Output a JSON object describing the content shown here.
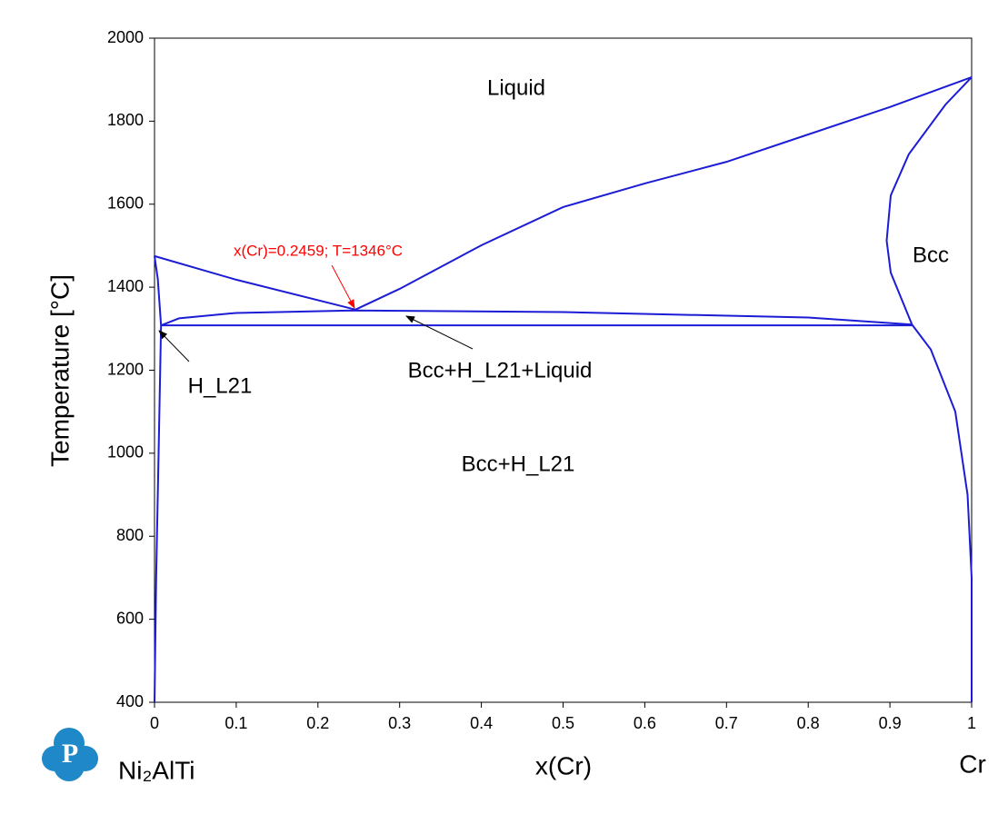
{
  "chart_data": {
    "type": "line",
    "xlabel": "x(Cr)",
    "ylabel": "Temperature [°C]",
    "element_label": "Cr",
    "system_label": "Ni₂AlTi",
    "xlim": [
      0,
      1
    ],
    "ylim": [
      400,
      2000
    ],
    "xticks": [
      0,
      0.1,
      0.2,
      0.3,
      0.4,
      0.5,
      0.6,
      0.7,
      0.8,
      0.9,
      1
    ],
    "yticks": [
      400,
      600,
      800,
      1000,
      1200,
      1400,
      1600,
      1800,
      2000
    ],
    "series": [
      {
        "color": "#1c1cd6",
        "x": [
          0,
          0.1,
          0.2459
        ],
        "values": [
          1475,
          1418,
          1346
        ]
      },
      {
        "color": "#1c1cd6",
        "x": [
          0.2459,
          0.3,
          0.4,
          0.5,
          0.6,
          0.7,
          0.8,
          0.9,
          1
        ],
        "values": [
          1346,
          1396,
          1501,
          1593,
          1650,
          1702,
          1768,
          1834,
          1906
        ]
      },
      {
        "color": "#1c1cd6",
        "x": [
          1,
          0.968,
          0.923,
          0.901,
          0.896,
          0.901,
          0.927
        ],
        "values": [
          1906,
          1840,
          1720,
          1621,
          1512,
          1435,
          1310
        ]
      },
      {
        "color": "#1c1cd6",
        "x": [
          0.008,
          0.927
        ],
        "values": [
          1308,
          1308
        ]
      },
      {
        "color": "#1c1cd6",
        "x": [
          0.008,
          0.03,
          0.1,
          0.2459,
          0.5,
          0.8,
          0.927
        ],
        "values": [
          1308,
          1325,
          1338,
          1344,
          1340,
          1327,
          1310
        ]
      },
      {
        "color": "#1c1cd6",
        "x": [
          0,
          0.004,
          0.008
        ],
        "values": [
          1475,
          1420,
          1308
        ]
      },
      {
        "color": "#1c1cd6",
        "x": [
          0.008,
          0.005,
          0.002,
          0
        ],
        "values": [
          1308,
          1000,
          700,
          400
        ]
      },
      {
        "color": "#1c1cd6",
        "x": [
          0.927,
          0.95,
          0.98,
          0.995,
          1,
          1
        ],
        "values": [
          1310,
          1250,
          1100,
          900,
          700,
          400
        ]
      }
    ],
    "annotations": [
      {
        "text": "Liquid",
        "color": "#000000"
      },
      {
        "text": "Bcc",
        "color": "#000000"
      },
      {
        "text": "H_L21",
        "color": "#000000"
      },
      {
        "text": "Bcc+H_L21+Liquid",
        "color": "#000000"
      },
      {
        "text": "Bcc+H_L21",
        "color": "#000000"
      },
      {
        "text": "x(Cr)=0.2459; T=1346°C",
        "color": "#ff0000"
      }
    ]
  }
}
